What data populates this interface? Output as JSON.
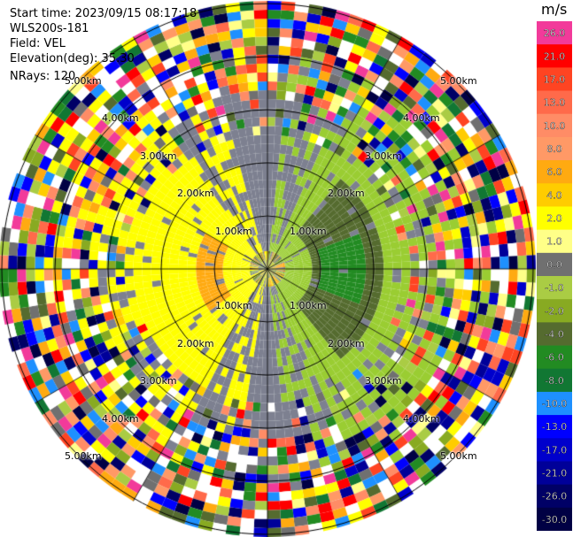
{
  "header": {
    "start_time": "Start time: 2023/09/15 08:17:18",
    "instrument": "WLS200s-181",
    "field": "Field: VEL",
    "elevation": "Elevation(deg): 35.30",
    "nrays": "NRays: 120"
  },
  "colorbar": {
    "unit": "m/s",
    "ticks": [
      "26.0",
      "21.0",
      "17.0",
      "13.0",
      "10.0",
      "8.0",
      "6.0",
      "4.0",
      "2.0",
      "1.0",
      "0.0",
      "-1.0",
      "-2.0",
      "-4.0",
      "-6.0",
      "-8.0",
      "-10.0",
      "-13.0",
      "-17.0",
      "-21.0",
      "-26.0",
      "-30.0"
    ],
    "colors": [
      "#f23a9a",
      "#ff0000",
      "#ff4422",
      "#ff6a4a",
      "#ff8c66",
      "#ff9966",
      "#ffaa11",
      "#ffcc00",
      "#ffff00",
      "#ffff88",
      "#707070",
      "#aacc44",
      "#88aa22",
      "#556b2f",
      "#228b22",
      "#117733",
      "#1e90ff",
      "#0000ff",
      "#0000cc",
      "#000099",
      "#000066",
      "#000044"
    ]
  },
  "range_rings": [
    "1.00km",
    "2.00km",
    "3.00km",
    "4.00km",
    "5.00km"
  ],
  "ppi": {
    "rays": 120,
    "gates": 30,
    "colors": {
      "gray": "#7d8090",
      "yellow": "#ffff00",
      "orange": "#ffaa11",
      "lightgreen": "#9acd32",
      "olive": "#556b2f",
      "green": "#228b22"
    }
  }
}
